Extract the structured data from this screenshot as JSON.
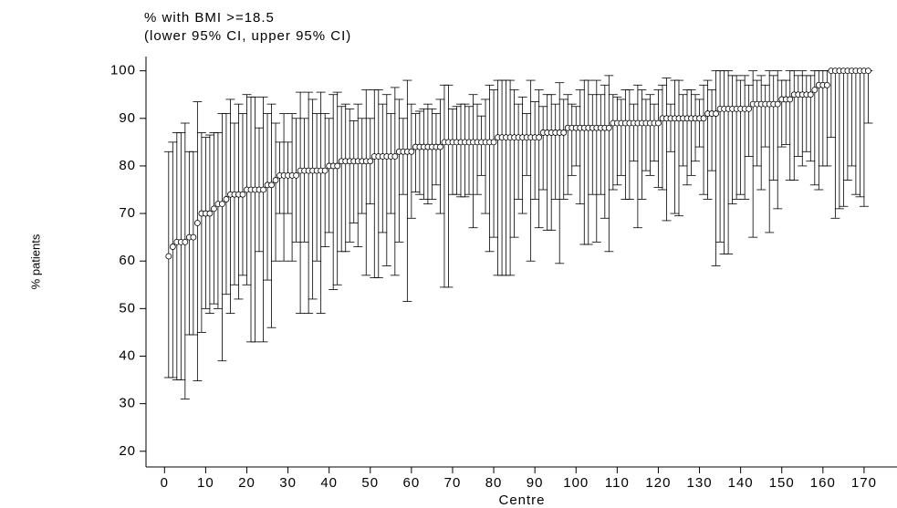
{
  "chart_data": {
    "type": "errorbar",
    "title": "% with BMI >=18.5",
    "subtitle": "(lower 95% CI, upper 95% CI)",
    "xlabel": "Centre",
    "ylabel": "% patients",
    "color": "#000000",
    "xlim": [
      -4.5,
      178
    ],
    "ylim": [
      16.7,
      103
    ],
    "xticks": [
      0,
      10,
      20,
      30,
      40,
      50,
      60,
      70,
      80,
      90,
      100,
      110,
      120,
      130,
      140,
      150,
      160,
      170
    ],
    "yticks": [
      20,
      30,
      40,
      50,
      60,
      70,
      80,
      90,
      100
    ],
    "x": [
      1,
      2,
      3,
      4,
      5,
      6,
      7,
      8,
      9,
      10,
      11,
      12,
      13,
      14,
      15,
      16,
      17,
      18,
      19,
      20,
      21,
      22,
      23,
      24,
      25,
      26,
      27,
      28,
      29,
      30,
      31,
      32,
      33,
      34,
      35,
      36,
      37,
      38,
      39,
      40,
      41,
      42,
      43,
      44,
      45,
      46,
      47,
      48,
      49,
      50,
      51,
      52,
      53,
      54,
      55,
      56,
      57,
      58,
      59,
      60,
      61,
      62,
      63,
      64,
      65,
      66,
      67,
      68,
      69,
      70,
      71,
      72,
      73,
      74,
      75,
      76,
      77,
      78,
      79,
      80,
      81,
      82,
      83,
      84,
      85,
      86,
      87,
      88,
      89,
      90,
      91,
      92,
      93,
      94,
      95,
      96,
      97,
      98,
      99,
      100,
      101,
      102,
      103,
      104,
      105,
      106,
      107,
      108,
      109,
      110,
      111,
      112,
      113,
      114,
      115,
      116,
      117,
      118,
      119,
      120,
      121,
      122,
      123,
      124,
      125,
      126,
      127,
      128,
      129,
      130,
      131,
      132,
      133,
      134,
      135,
      136,
      137,
      138,
      139,
      140,
      141,
      142,
      143,
      144,
      145,
      146,
      147,
      148,
      149,
      150,
      151,
      152,
      153,
      154,
      155,
      156,
      157,
      158,
      159,
      160,
      161,
      162,
      163,
      164,
      165,
      166,
      167,
      168,
      169,
      170,
      171
    ],
    "values": [
      61,
      63,
      64,
      64,
      64,
      65,
      65,
      68,
      70,
      70,
      70,
      71,
      72,
      72,
      73,
      74,
      74,
      74,
      74,
      75,
      75,
      75,
      75,
      75,
      76,
      76,
      77,
      78,
      78,
      78,
      78,
      78,
      79,
      79,
      79,
      79,
      79,
      79,
      79,
      80,
      80,
      80,
      81,
      81,
      81,
      81,
      81,
      81,
      81,
      81,
      82,
      82,
      82,
      82,
      82,
      82,
      83,
      83,
      83,
      83,
      84,
      84,
      84,
      84,
      84,
      84,
      84,
      85,
      85,
      85,
      85,
      85,
      85,
      85,
      85,
      85,
      85,
      85,
      85,
      85,
      86,
      86,
      86,
      86,
      86,
      86,
      86,
      86,
      86,
      86,
      86,
      87,
      87,
      87,
      87,
      87,
      87,
      88,
      88,
      88,
      88,
      88,
      88,
      88,
      88,
      88,
      88,
      88,
      89,
      89,
      89,
      89,
      89,
      89,
      89,
      89,
      89,
      89,
      89,
      89,
      90,
      90,
      90,
      90,
      90,
      90,
      90,
      90,
      90,
      90,
      90,
      91,
      91,
      91,
      92,
      92,
      92,
      92,
      92,
      92,
      92,
      92,
      93,
      93,
      93,
      93,
      93,
      93,
      93,
      94,
      94,
      94,
      95,
      95,
      95,
      95,
      95,
      96,
      97,
      97,
      97,
      100,
      100,
      100,
      100,
      100,
      100,
      100,
      100,
      100,
      100
    ],
    "lower": [
      35.5,
      35.5,
      35,
      35,
      31,
      44.5,
      44.5,
      34.8,
      45,
      50,
      49,
      51,
      50,
      39,
      53,
      49,
      55,
      52,
      57,
      55,
      43,
      43,
      62,
      43,
      56,
      46,
      60,
      70,
      60,
      70,
      60,
      64,
      49,
      64,
      49,
      52,
      60,
      49,
      63,
      66,
      54,
      55,
      62,
      62,
      64,
      68,
      63,
      70,
      57,
      72,
      56.5,
      56.5,
      66,
      59,
      70,
      57,
      64,
      74,
      51.5,
      69,
      74.5,
      74,
      73,
      72,
      73,
      76,
      70,
      54.5,
      54.5,
      74,
      74,
      73.5,
      73.5,
      74,
      67,
      74,
      78,
      70,
      62,
      65,
      57,
      57,
      57,
      57,
      65,
      73,
      70,
      78,
      60,
      73,
      67,
      75,
      66.5,
      66.5,
      73,
      59.5,
      73,
      74,
      78,
      80,
      72,
      63.5,
      63.5,
      74,
      64,
      74,
      69,
      62,
      75,
      76,
      78,
      73,
      73,
      81,
      67,
      73,
      79,
      78,
      81,
      75.5,
      75,
      68.5,
      83,
      70,
      69.5,
      80,
      76,
      78,
      81,
      84,
      74,
      73,
      79,
      59,
      64,
      61.5,
      61.5,
      72,
      73,
      74,
      73,
      82,
      65,
      80,
      75,
      84,
      66,
      77,
      71,
      84,
      84.5,
      77,
      77,
      82,
      80,
      83,
      81,
      76,
      75,
      80,
      80,
      86,
      69,
      71,
      71.5,
      77,
      80,
      74,
      73.5,
      71.5,
      89
    ],
    "upper": [
      83,
      85,
      87,
      87,
      89,
      83,
      83,
      93.5,
      87,
      86,
      86.5,
      87,
      87,
      91,
      91,
      94,
      89,
      93,
      91,
      95,
      94.5,
      94.5,
      88,
      94.5,
      91,
      93,
      89,
      85,
      91,
      85,
      91,
      90,
      95.5,
      90,
      95.5,
      94,
      91,
      95.5,
      91,
      90,
      95,
      95.5,
      92.5,
      93,
      92,
      89.5,
      93,
      90,
      96,
      90,
      96,
      96,
      93,
      95,
      91,
      96.5,
      94,
      90,
      98,
      93,
      91,
      91.5,
      92,
      93,
      92,
      91,
      94,
      97,
      97,
      92,
      92.5,
      93,
      93,
      92.5,
      95,
      93,
      90.5,
      94,
      97,
      96,
      98,
      98,
      98,
      98,
      96,
      93,
      94.5,
      91,
      98,
      93.5,
      96,
      92.5,
      95,
      95,
      93,
      97.5,
      94,
      95,
      93,
      92.5,
      96,
      98,
      98,
      95,
      98,
      95,
      97,
      99,
      95,
      94.5,
      94,
      96,
      96,
      93,
      97,
      96,
      94,
      95,
      93,
      96,
      97,
      98.5,
      93,
      98,
      98,
      95,
      96,
      96,
      95,
      94,
      97,
      98,
      96,
      100,
      100,
      100,
      100,
      99,
      99,
      98,
      99,
      97,
      100,
      98,
      99,
      97,
      100,
      99,
      100,
      98,
      98,
      100,
      100,
      99,
      100,
      99,
      99,
      100,
      100,
      100,
      100,
      100,
      100,
      100,
      100,
      100,
      100,
      100,
      100,
      100,
      100
    ]
  }
}
